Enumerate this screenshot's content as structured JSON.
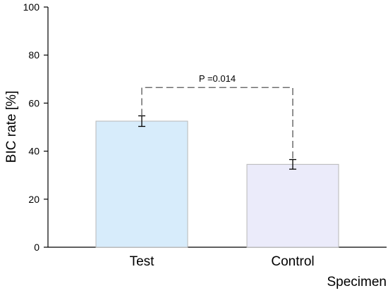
{
  "chart_data": {
    "type": "bar",
    "title": "",
    "xlabel": "Specimen",
    "ylabel": "BIC rate [%]",
    "ylim": [
      0,
      100
    ],
    "yticks": [
      0,
      20,
      40,
      60,
      80,
      100
    ],
    "categories": [
      "Test",
      "Control"
    ],
    "values": [
      52.5,
      34.5
    ],
    "error_bars": [
      2.2,
      2.0
    ],
    "bar_colors": [
      "#d7ecfb",
      "#ebebfa"
    ],
    "bar_edge_color": "#b7b7b7",
    "grid": false,
    "annotations": [
      {
        "text": "P =0.014",
        "between": [
          "Test",
          "Control"
        ],
        "y": 66.5,
        "style": "dashed-bracket"
      }
    ]
  }
}
